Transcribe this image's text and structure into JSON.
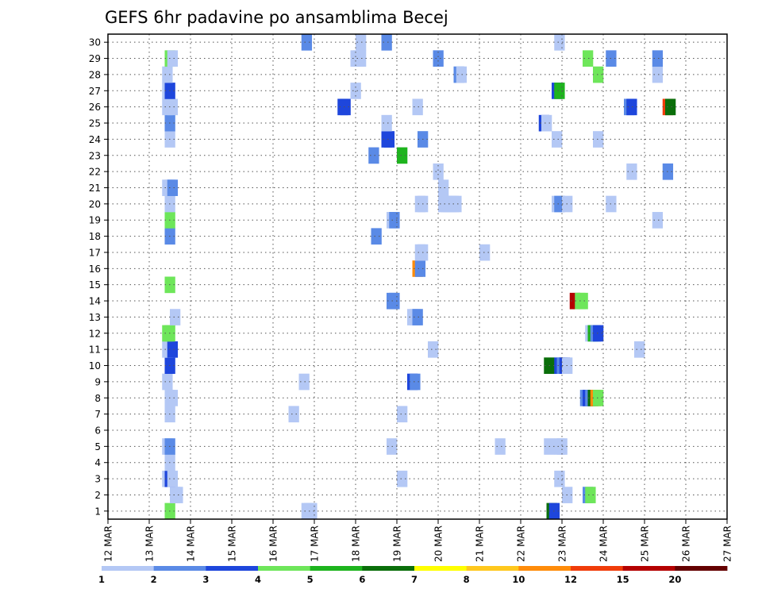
{
  "chart_data": {
    "type": "heatmap",
    "title": "GEFS 6hr padavine po ansamblima Becej",
    "x_ticks": [
      "12 MAR",
      "13 MAR",
      "14 MAR",
      "15 MAR",
      "16 MAR",
      "17 MAR",
      "18 MAR",
      "19 MAR",
      "20 MAR",
      "21 MAR",
      "22 MAR",
      "23 MAR",
      "24 MAR",
      "25 MAR",
      "26 MAR",
      "27 MAR"
    ],
    "y_ticks": [
      1,
      2,
      3,
      4,
      5,
      6,
      7,
      8,
      9,
      10,
      11,
      12,
      13,
      14,
      15,
      16,
      17,
      18,
      19,
      20,
      21,
      22,
      23,
      24,
      25,
      26,
      27,
      28,
      29,
      30
    ],
    "ylim": [
      0,
      30
    ],
    "steps_per_day": 4,
    "x_start": "12 MAR",
    "grid": true,
    "colorbar": {
      "position": "bottom",
      "labels": [
        "1",
        "2",
        "3",
        "4",
        "5",
        "6",
        "7",
        "8",
        "10",
        "12",
        "15",
        "20"
      ],
      "colors": [
        "#b4c8f5",
        "#5a8ae6",
        "#1e46dc",
        "#6ee65a",
        "#1eb41e",
        "#0a6e0a",
        "#ffff00",
        "#ffc81e",
        "#ff8c0a",
        "#f03c0a",
        "#b40000",
        "#640000"
      ]
    },
    "cells": [
      {
        "x": 5.5,
        "y": 0,
        "c": 4
      },
      {
        "x": 18.75,
        "y": 0,
        "c": 1
      },
      {
        "x": 19,
        "y": 0,
        "c": 1
      },
      {
        "x": 19.25,
        "y": 0,
        "c": 1
      },
      {
        "x": 42.5,
        "y": 0,
        "c": 6
      },
      {
        "x": 42.75,
        "y": 0,
        "c": 3
      },
      {
        "x": 6,
        "y": 1,
        "c": 1
      },
      {
        "x": 6.25,
        "y": 1,
        "c": 1
      },
      {
        "x": 44,
        "y": 1,
        "c": 1
      },
      {
        "x": 46,
        "y": 1,
        "c": 2
      },
      {
        "x": 46.25,
        "y": 1,
        "c": 4
      },
      {
        "x": 5.25,
        "y": 2,
        "c": 1
      },
      {
        "x": 5.5,
        "y": 2,
        "c": 3
      },
      {
        "x": 5.75,
        "y": 2,
        "c": 1
      },
      {
        "x": 28,
        "y": 2,
        "c": 1
      },
      {
        "x": 43.25,
        "y": 2,
        "c": 1
      },
      {
        "x": 5.5,
        "y": 3,
        "c": 1
      },
      {
        "x": 5.25,
        "y": 4,
        "c": 1
      },
      {
        "x": 5.5,
        "y": 4,
        "c": 2
      },
      {
        "x": 27,
        "y": 4,
        "c": 1
      },
      {
        "x": 37.5,
        "y": 4,
        "c": 1
      },
      {
        "x": 42.25,
        "y": 4,
        "c": 1
      },
      {
        "x": 43.25,
        "y": 4,
        "c": 1
      },
      {
        "x": 43.5,
        "y": 4,
        "c": 1
      },
      {
        "x": 5.5,
        "y": 6,
        "c": 1
      },
      {
        "x": 17.5,
        "y": 6,
        "c": 1
      },
      {
        "x": 28,
        "y": 6,
        "c": 1
      },
      {
        "x": 5.5,
        "y": 7,
        "c": 1
      },
      {
        "x": 5.75,
        "y": 7,
        "c": 1
      },
      {
        "x": 45.75,
        "y": 7,
        "c": 2
      },
      {
        "x": 46,
        "y": 7,
        "c": 3
      },
      {
        "x": 46.25,
        "y": 7,
        "c": 2
      },
      {
        "x": 46.5,
        "y": 7,
        "c": 6
      },
      {
        "x": 46.75,
        "y": 7,
        "c": 9
      },
      {
        "x": 47,
        "y": 7,
        "c": 4
      },
      {
        "x": 5.25,
        "y": 8,
        "c": 1
      },
      {
        "x": 18.5,
        "y": 8,
        "c": 1
      },
      {
        "x": 29,
        "y": 8,
        "c": 3
      },
      {
        "x": 29.25,
        "y": 8,
        "c": 2
      },
      {
        "x": 5.5,
        "y": 9,
        "c": 3
      },
      {
        "x": 42.25,
        "y": 9,
        "c": 6
      },
      {
        "x": 43.25,
        "y": 9,
        "c": 3
      },
      {
        "x": 43.5,
        "y": 9,
        "c": 2
      },
      {
        "x": 43.75,
        "y": 9,
        "c": 3
      },
      {
        "x": 44,
        "y": 9,
        "c": 1
      },
      {
        "x": 5.25,
        "y": 10,
        "c": 1
      },
      {
        "x": 5.5,
        "y": 10,
        "c": 1
      },
      {
        "x": 5.75,
        "y": 10,
        "c": 3
      },
      {
        "x": 31,
        "y": 10,
        "c": 1
      },
      {
        "x": 51,
        "y": 10,
        "c": 1
      },
      {
        "x": 5.25,
        "y": 11,
        "c": 4
      },
      {
        "x": 5.5,
        "y": 11,
        "c": 4
      },
      {
        "x": 46.25,
        "y": 11,
        "c": 1
      },
      {
        "x": 46.5,
        "y": 11,
        "c": 5
      },
      {
        "x": 46.75,
        "y": 11,
        "c": 2
      },
      {
        "x": 47,
        "y": 11,
        "c": 3
      },
      {
        "x": 6,
        "y": 12,
        "c": 1
      },
      {
        "x": 29,
        "y": 12,
        "c": 1
      },
      {
        "x": 29.25,
        "y": 12,
        "c": 1
      },
      {
        "x": 29.5,
        "y": 12,
        "c": 2
      },
      {
        "x": 27,
        "y": 13,
        "c": 2
      },
      {
        "x": 27.25,
        "y": 13,
        "c": 2
      },
      {
        "x": 44.75,
        "y": 13,
        "c": 11
      },
      {
        "x": 45.25,
        "y": 13,
        "c": 4
      },
      {
        "x": 45.5,
        "y": 13,
        "c": 4
      },
      {
        "x": 5.5,
        "y": 14,
        "c": 4
      },
      {
        "x": 29.5,
        "y": 15,
        "c": 9
      },
      {
        "x": 29.75,
        "y": 15,
        "c": 2
      },
      {
        "x": 29.75,
        "y": 16,
        "c": 1
      },
      {
        "x": 30,
        "y": 16,
        "c": 1
      },
      {
        "x": 36,
        "y": 16,
        "c": 1
      },
      {
        "x": 5.5,
        "y": 17,
        "c": 2
      },
      {
        "x": 25.5,
        "y": 17,
        "c": 2
      },
      {
        "x": 5.5,
        "y": 18,
        "c": 4
      },
      {
        "x": 27,
        "y": 18,
        "c": 1
      },
      {
        "x": 27.25,
        "y": 18,
        "c": 2
      },
      {
        "x": 52.75,
        "y": 18,
        "c": 1
      },
      {
        "x": 5.5,
        "y": 19,
        "c": 1
      },
      {
        "x": 29.75,
        "y": 19,
        "c": 1
      },
      {
        "x": 30,
        "y": 19,
        "c": 1
      },
      {
        "x": 32,
        "y": 19,
        "c": 1
      },
      {
        "x": 32.25,
        "y": 19,
        "c": 1
      },
      {
        "x": 32.5,
        "y": 19,
        "c": 1
      },
      {
        "x": 32.75,
        "y": 19,
        "c": 1
      },
      {
        "x": 33,
        "y": 19,
        "c": 1
      },
      {
        "x": 33.25,
        "y": 19,
        "c": 1
      },
      {
        "x": 43,
        "y": 19,
        "c": 1
      },
      {
        "x": 43.25,
        "y": 19,
        "c": 2
      },
      {
        "x": 44,
        "y": 19,
        "c": 1
      },
      {
        "x": 48.25,
        "y": 19,
        "c": 1
      },
      {
        "x": 5.25,
        "y": 20,
        "c": 1
      },
      {
        "x": 5.5,
        "y": 20,
        "c": 1
      },
      {
        "x": 5.75,
        "y": 20,
        "c": 2
      },
      {
        "x": 32,
        "y": 20,
        "c": 1
      },
      {
        "x": 31.5,
        "y": 21,
        "c": 1
      },
      {
        "x": 50.25,
        "y": 21,
        "c": 1
      },
      {
        "x": 53.75,
        "y": 21,
        "c": 2
      },
      {
        "x": 28,
        "y": 22,
        "c": 5
      },
      {
        "x": 25.25,
        "y": 22,
        "c": 2
      },
      {
        "x": 5.5,
        "y": 23,
        "c": 1
      },
      {
        "x": 26.5,
        "y": 23,
        "c": 3
      },
      {
        "x": 26.75,
        "y": 23,
        "c": 3
      },
      {
        "x": 30,
        "y": 23,
        "c": 2
      },
      {
        "x": 43,
        "y": 23,
        "c": 1
      },
      {
        "x": 47,
        "y": 23,
        "c": 1
      },
      {
        "x": 5.5,
        "y": 24,
        "c": 2
      },
      {
        "x": 26.5,
        "y": 24,
        "c": 1
      },
      {
        "x": 41.75,
        "y": 24,
        "c": 3
      },
      {
        "x": 42,
        "y": 24,
        "c": 1
      },
      {
        "x": 5.25,
        "y": 25,
        "c": 1
      },
      {
        "x": 5.75,
        "y": 25,
        "c": 1
      },
      {
        "x": 22.25,
        "y": 25,
        "c": 3
      },
      {
        "x": 22.5,
        "y": 25,
        "c": 3
      },
      {
        "x": 29.5,
        "y": 25,
        "c": 1
      },
      {
        "x": 50,
        "y": 25,
        "c": 2
      },
      {
        "x": 50.25,
        "y": 25,
        "c": 3
      },
      {
        "x": 53.75,
        "y": 25,
        "c": 10
      },
      {
        "x": 54,
        "y": 25,
        "c": 6
      },
      {
        "x": 5.25,
        "y": 26,
        "c": 1
      },
      {
        "x": 5.5,
        "y": 26,
        "c": 3
      },
      {
        "x": 23.5,
        "y": 26,
        "c": 1
      },
      {
        "x": 43,
        "y": 26,
        "c": 3
      },
      {
        "x": 43.25,
        "y": 26,
        "c": 5
      },
      {
        "x": 5.25,
        "y": 27,
        "c": 1
      },
      {
        "x": 33.5,
        "y": 27,
        "c": 2
      },
      {
        "x": 33.75,
        "y": 27,
        "c": 1
      },
      {
        "x": 47,
        "y": 27,
        "c": 4
      },
      {
        "x": 52.75,
        "y": 27,
        "c": 1
      },
      {
        "x": 5.5,
        "y": 28,
        "c": 4
      },
      {
        "x": 5.75,
        "y": 28,
        "c": 1
      },
      {
        "x": 23.5,
        "y": 28,
        "c": 1
      },
      {
        "x": 23.75,
        "y": 28,
        "c": 1
      },
      {
        "x": 24,
        "y": 28,
        "c": 1
      },
      {
        "x": 31.5,
        "y": 28,
        "c": 2
      },
      {
        "x": 46,
        "y": 28,
        "c": 4
      },
      {
        "x": 48.25,
        "y": 28,
        "c": 2
      },
      {
        "x": 52.75,
        "y": 28,
        "c": 2
      },
      {
        "x": 18.75,
        "y": 29,
        "c": 2
      },
      {
        "x": 24,
        "y": 29,
        "c": 1
      },
      {
        "x": 26.5,
        "y": 29,
        "c": 2
      },
      {
        "x": 43.25,
        "y": 29,
        "c": 1
      }
    ]
  }
}
